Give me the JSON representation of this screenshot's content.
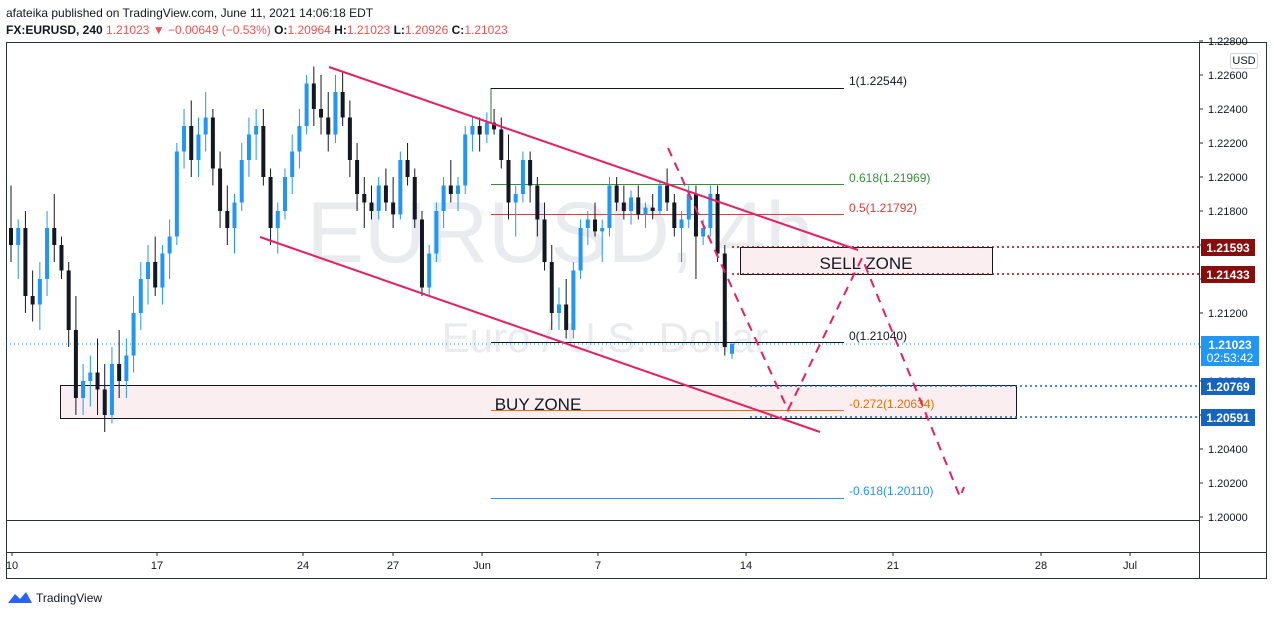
{
  "header": {
    "line1": "afateika published on TradingView.com, June 11, 2021 14:06:18 EDT",
    "symbol": "FX:EURUSD, 240",
    "last": "1.21023",
    "change": "▼ −0.00649 (−0.53%)",
    "o_label": "O:",
    "o_val": "1.20964",
    "h_label": "H:",
    "h_val": "1.21023",
    "l_label": "L:",
    "l_val": "1.20926",
    "c_label": "C:",
    "c_val": "1.21023"
  },
  "watermark": {
    "symbol": "EURUSD, 4h",
    "name": "Euro / U.S. Dollar"
  },
  "axis": {
    "currency": "USD"
  },
  "zones": {
    "sell": "SELL ZONE",
    "buy": "BUY ZONE"
  },
  "fib": {
    "f1": "1(1.22544)",
    "f0618": "0.618(1.21969)",
    "f05": "0.5(1.21792)",
    "f0": "0(1.21040)",
    "fm0272": "-0.272(1.20634)",
    "fm0618": "-0.618(1.20110)"
  },
  "price_labels": {
    "p1": "1.21593",
    "p2": "1.21433",
    "last": "1.21023",
    "countdown": "02:53:42",
    "p3": "1.20769",
    "p4": "1.20591"
  },
  "footer": {
    "brand": "TradingView"
  },
  "colors": {
    "up": "#2196f3",
    "down": "#131722",
    "channel": "#e91e63",
    "sell": "#880e0e",
    "buy": "#1565c0"
  },
  "chart_data": {
    "type": "candlestick",
    "y_ticks": [
      "1.22800",
      "1.22600",
      "1.22400",
      "1.22200",
      "1.22000",
      "1.21800",
      "1.21600",
      "1.21400",
      "1.21200",
      "1.21000",
      "1.20800",
      "1.20600",
      "1.20400",
      "1.20200",
      "1.20000"
    ],
    "ylim": [
      1.1988,
      1.2285
    ],
    "x_ticks": [
      "10",
      "17",
      "24",
      "27",
      "Jun",
      "7",
      "14",
      "21",
      "28",
      "Jul"
    ],
    "candles": [
      [
        1.217,
        1.2195,
        1.215,
        1.216
      ],
      [
        1.216,
        1.2175,
        1.214,
        1.217
      ],
      [
        1.217,
        1.218,
        1.212,
        1.213
      ],
      [
        1.213,
        1.2145,
        1.2115,
        1.2125
      ],
      [
        1.2125,
        1.215,
        1.211,
        1.214
      ],
      [
        1.214,
        1.218,
        1.213,
        1.217
      ],
      [
        1.217,
        1.219,
        1.215,
        1.216
      ],
      [
        1.216,
        1.2165,
        1.214,
        1.2145
      ],
      [
        1.2145,
        1.215,
        1.21,
        1.211
      ],
      [
        1.211,
        1.213,
        1.206,
        1.207
      ],
      [
        1.207,
        1.209,
        1.206,
        1.208
      ],
      [
        1.208,
        1.2095,
        1.2065,
        1.2085
      ],
      [
        1.2085,
        1.2105,
        1.206,
        1.2075
      ],
      [
        1.2075,
        1.209,
        1.205,
        1.206
      ],
      [
        1.206,
        1.21,
        1.2055,
        1.209
      ],
      [
        1.209,
        1.211,
        1.207,
        1.208
      ],
      [
        1.208,
        1.2105,
        1.207,
        1.2095
      ],
      [
        1.2095,
        1.213,
        1.2085,
        1.212
      ],
      [
        1.212,
        1.215,
        1.211,
        1.214
      ],
      [
        1.214,
        1.216,
        1.2125,
        1.215
      ],
      [
        1.215,
        1.2165,
        1.213,
        1.2135
      ],
      [
        1.2135,
        1.216,
        1.2125,
        1.2155
      ],
      [
        1.2155,
        1.2175,
        1.214,
        1.2165
      ],
      [
        1.2165,
        1.222,
        1.216,
        1.2215
      ],
      [
        1.2215,
        1.224,
        1.2205,
        1.223
      ],
      [
        1.223,
        1.2245,
        1.22,
        1.221
      ],
      [
        1.221,
        1.2235,
        1.22,
        1.2225
      ],
      [
        1.2225,
        1.225,
        1.2215,
        1.2235
      ],
      [
        1.2235,
        1.224,
        1.2195,
        1.2205
      ],
      [
        1.2205,
        1.2215,
        1.217,
        1.218
      ],
      [
        1.218,
        1.2195,
        1.216,
        1.217
      ],
      [
        1.217,
        1.219,
        1.2155,
        1.2185
      ],
      [
        1.2185,
        1.222,
        1.218,
        1.221
      ],
      [
        1.221,
        1.2235,
        1.22,
        1.2225
      ],
      [
        1.2225,
        1.224,
        1.221,
        1.223
      ],
      [
        1.223,
        1.224,
        1.2195,
        1.22
      ],
      [
        1.22,
        1.2205,
        1.216,
        1.217
      ],
      [
        1.217,
        1.2185,
        1.2155,
        1.218
      ],
      [
        1.218,
        1.2205,
        1.2175,
        1.22
      ],
      [
        1.22,
        1.2225,
        1.219,
        1.2215
      ],
      [
        1.2215,
        1.224,
        1.2205,
        1.223
      ],
      [
        1.223,
        1.226,
        1.2225,
        1.2255
      ],
      [
        1.2255,
        1.2265,
        1.223,
        1.224
      ],
      [
        1.224,
        1.226,
        1.2225,
        1.2235
      ],
      [
        1.2235,
        1.225,
        1.2215,
        1.2225
      ],
      [
        1.2225,
        1.226,
        1.222,
        1.225
      ],
      [
        1.225,
        1.2262,
        1.223,
        1.2235
      ],
      [
        1.2235,
        1.2245,
        1.22,
        1.221
      ],
      [
        1.221,
        1.222,
        1.218,
        1.219
      ],
      [
        1.219,
        1.22,
        1.217,
        1.2185
      ],
      [
        1.2185,
        1.2195,
        1.2175,
        1.218
      ],
      [
        1.218,
        1.22,
        1.2175,
        1.2195
      ],
      [
        1.2195,
        1.2205,
        1.218,
        1.2185
      ],
      [
        1.2185,
        1.22,
        1.217,
        1.2178
      ],
      [
        1.2178,
        1.2215,
        1.2175,
        1.221
      ],
      [
        1.221,
        1.222,
        1.2195,
        1.22
      ],
      [
        1.22,
        1.2205,
        1.217,
        1.2175
      ],
      [
        1.2175,
        1.218,
        1.213,
        1.2135
      ],
      [
        1.2135,
        1.216,
        1.213,
        1.2155
      ],
      [
        1.2155,
        1.2185,
        1.215,
        1.218
      ],
      [
        1.218,
        1.22,
        1.217,
        1.2195
      ],
      [
        1.2195,
        1.221,
        1.2185,
        1.219
      ],
      [
        1.219,
        1.22,
        1.218,
        1.2195
      ],
      [
        1.2195,
        1.223,
        1.219,
        1.2225
      ],
      [
        1.2225,
        1.2235,
        1.2215,
        1.223
      ],
      [
        1.223,
        1.2235,
        1.2215,
        1.2225
      ],
      [
        1.2225,
        1.2238,
        1.222,
        1.2232
      ],
      [
        1.2232,
        1.224,
        1.2225,
        1.2228
      ],
      [
        1.2228,
        1.2235,
        1.2205,
        1.221
      ],
      [
        1.221,
        1.2225,
        1.2175,
        1.2185
      ],
      [
        1.2185,
        1.2195,
        1.2165,
        1.219
      ],
      [
        1.219,
        1.2215,
        1.2185,
        1.221
      ],
      [
        1.221,
        1.2215,
        1.2185,
        1.2195
      ],
      [
        1.2195,
        1.22,
        1.2165,
        1.2175
      ],
      [
        1.2175,
        1.2185,
        1.2145,
        1.215
      ],
      [
        1.215,
        1.216,
        1.211,
        1.212
      ],
      [
        1.212,
        1.2135,
        1.211,
        1.2125
      ],
      [
        1.2125,
        1.214,
        1.2105,
        1.211
      ],
      [
        1.211,
        1.215,
        1.2105,
        1.2145
      ],
      [
        1.2145,
        1.2175,
        1.214,
        1.217
      ],
      [
        1.217,
        1.218,
        1.216,
        1.2175
      ],
      [
        1.2175,
        1.2185,
        1.2165,
        1.2168
      ],
      [
        1.2168,
        1.2175,
        1.215,
        1.217
      ],
      [
        1.217,
        1.22,
        1.2165,
        1.2195
      ],
      [
        1.2195,
        1.22,
        1.218,
        1.2185
      ],
      [
        1.2185,
        1.2195,
        1.2175,
        1.218
      ],
      [
        1.218,
        1.2192,
        1.2172,
        1.2188
      ],
      [
        1.2188,
        1.2195,
        1.2175,
        1.2178
      ],
      [
        1.2178,
        1.2185,
        1.217,
        1.2182
      ],
      [
        1.2182,
        1.219,
        1.2175,
        1.218
      ],
      [
        1.218,
        1.2198,
        1.2178,
        1.2195
      ],
      [
        1.2195,
        1.2205,
        1.218,
        1.2185
      ],
      [
        1.2185,
        1.219,
        1.2165,
        1.217
      ],
      [
        1.217,
        1.218,
        1.215,
        1.2175
      ],
      [
        1.2175,
        1.2195,
        1.217,
        1.219
      ],
      [
        1.219,
        1.2195,
        1.214,
        1.2165
      ],
      [
        1.2165,
        1.2175,
        1.216,
        1.217
      ],
      [
        1.217,
        1.2195,
        1.2165,
        1.219
      ],
      [
        1.219,
        1.2195,
        1.215,
        1.2155
      ],
      [
        1.2155,
        1.216,
        1.2095,
        1.21
      ],
      [
        1.2096,
        1.2102,
        1.2093,
        1.2102
      ]
    ],
    "channel": {
      "upper": [
        [
          1.2267,
          0
        ],
        [
          1.2161,
          1
        ]
      ],
      "lower": [
        [
          1.2161,
          0
        ],
        [
          1.2052,
          1
        ]
      ]
    },
    "fib_levels": [
      {
        "level": "1",
        "price": 1.22544
      },
      {
        "level": "0.618",
        "price": 1.21969
      },
      {
        "level": "0.5",
        "price": 1.21792
      },
      {
        "level": "0",
        "price": 1.2104
      },
      {
        "level": "-0.272",
        "price": 1.20634
      },
      {
        "level": "-0.618",
        "price": 1.2011
      }
    ],
    "sell_zone": [
      1.21433,
      1.21593
    ],
    "buy_zone": [
      1.20591,
      1.20769
    ],
    "last_price": 1.21023
  }
}
